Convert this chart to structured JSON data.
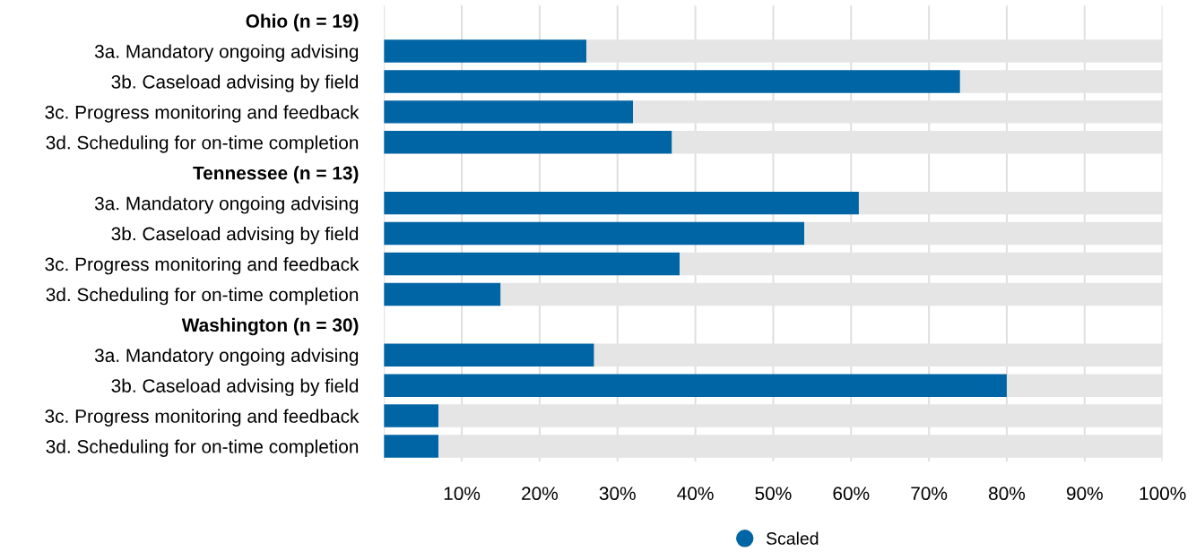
{
  "chart_data": {
    "type": "bar",
    "orientation": "horizontal",
    "stacked": true,
    "categories": [
      "Ohio (n = 19)",
      "3a. Mandatory ongoing advising",
      "3b. Caseload advising by field",
      "3c. Progress monitoring and feedback",
      "3d. Scheduling for on-time completion",
      "Tennessee (n = 13)",
      "3a. Mandatory ongoing advising",
      "3b. Caseload advising by field",
      "3c. Progress monitoring and feedback",
      "3d. Scheduling for on-time completion",
      "Washington (n = 30)",
      "3a. Mandatory ongoing advising",
      "3b. Caseload advising by field",
      "3c. Progress monitoring and feedback",
      "3d. Scheduling for on-time completion"
    ],
    "series": [
      {
        "name": "Scaled",
        "color": "#0065a4",
        "values": [
          null,
          26,
          74,
          32,
          37,
          null,
          61,
          54,
          38,
          15,
          null,
          27,
          80,
          7,
          7
        ]
      },
      {
        "color": "#e5e5e5",
        "values": [
          null,
          74,
          26,
          68,
          63,
          null,
          39,
          46,
          62,
          85,
          null,
          73,
          20,
          93,
          93
        ]
      }
    ],
    "xlim": [
      0,
      100
    ],
    "xticks": [
      {
        "value": 0,
        "label": null
      },
      {
        "value": 10,
        "label": "10%"
      },
      {
        "value": 20,
        "label": "20%"
      },
      {
        "value": 30,
        "label": "30%"
      },
      {
        "value": 40,
        "label": "40%"
      },
      {
        "value": 50,
        "label": "50%"
      },
      {
        "value": 60,
        "label": "60%"
      },
      {
        "value": 70,
        "label": "70%"
      },
      {
        "value": 80,
        "label": "80%"
      },
      {
        "value": 90,
        "label": "90%"
      },
      {
        "value": 100,
        "label": "100%"
      }
    ],
    "grid": "x",
    "legend": "bottom",
    "marker": "circle"
  }
}
